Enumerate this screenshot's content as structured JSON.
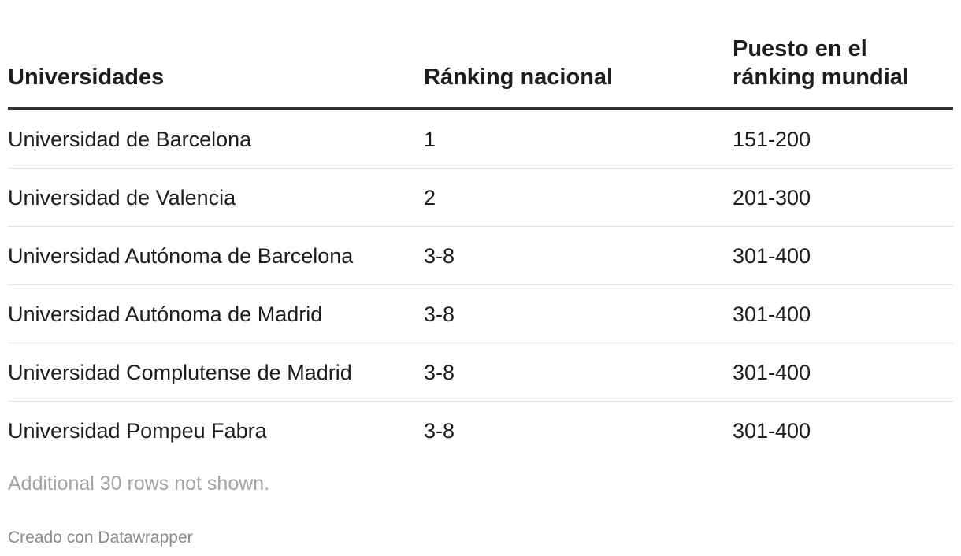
{
  "chart_data": {
    "type": "table",
    "columns": [
      "Universidades",
      "Ránking nacional",
      "Puesto en el ránking mundial"
    ],
    "column_header_lines": [
      [
        "Universidades"
      ],
      [
        "Ránking nacional"
      ],
      [
        "Puesto en el",
        "ránking mundial"
      ]
    ],
    "rows": [
      [
        "Universidad de Barcelona",
        "1",
        "151-200"
      ],
      [
        "Universidad de Valencia",
        "2",
        "201-300"
      ],
      [
        "Universidad Autónoma de Barcelona",
        "3-8",
        "301-400"
      ],
      [
        "Universidad Autónoma de Madrid",
        "3-8",
        "301-400"
      ],
      [
        "Universidad Complutense de Madrid",
        "3-8",
        "301-400"
      ],
      [
        "Universidad Pompeu Fabra",
        "3-8",
        "301-400"
      ]
    ],
    "notice": "Additional 30 rows not shown.",
    "credit": "Creado con Datawrapper"
  },
  "colors": {
    "text": "#1d1d1d",
    "header_rule": "#333333",
    "row_rule": "#e0e0e0",
    "notice": "#a3a3a3",
    "credit": "#8a8a8a"
  }
}
